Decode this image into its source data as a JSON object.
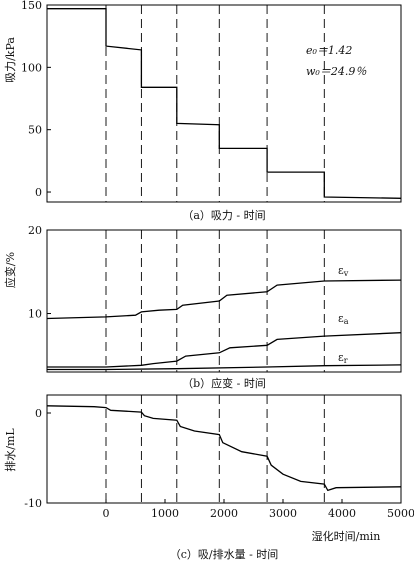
{
  "chart_data": [
    {
      "id": "a",
      "type": "line",
      "caption": "（a）吸力 - 时间",
      "ylabel": "吸力/kPa",
      "ylim": [
        -8,
        150
      ],
      "yticks": [
        0,
        50,
        100,
        150
      ],
      "xlim": [
        -1000,
        5000
      ],
      "annotations": [
        "e₀＝1.42",
        "w₀＝24.9％"
      ],
      "dashed_x": [
        0,
        600,
        1200,
        1920,
        2730,
        3700
      ],
      "series": [
        {
          "name": "",
          "points": [
            [
              -1000,
              147
            ],
            [
              -600,
              147
            ],
            [
              0,
              147
            ],
            [
              0,
              117
            ],
            [
              600,
              114
            ],
            [
              600,
              84
            ],
            [
              1200,
              84
            ],
            [
              1200,
              55
            ],
            [
              1920,
              54
            ],
            [
              1920,
              35
            ],
            [
              2730,
              35
            ],
            [
              2730,
              16
            ],
            [
              3700,
              16
            ],
            [
              3700,
              -4
            ],
            [
              5000,
              -5
            ]
          ]
        }
      ]
    },
    {
      "id": "b",
      "type": "line",
      "caption": "（b）应变 - 时间",
      "ylabel": "应变/%",
      "ylim": [
        3,
        20
      ],
      "yticks": [
        10,
        20
      ],
      "xlim": [
        -1000,
        5000
      ],
      "dashed_x": [
        0,
        600,
        1200,
        1920,
        2730,
        3700
      ],
      "series_labels": [
        "ε",
        "ε",
        "ε"
      ],
      "series_subs": [
        "v",
        "a",
        "r"
      ],
      "series": [
        {
          "name": "εv",
          "points": [
            [
              -1000,
              9.4
            ],
            [
              0,
              9.6
            ],
            [
              500,
              9.8
            ],
            [
              600,
              10.2
            ],
            [
              900,
              10.4
            ],
            [
              1200,
              10.5
            ],
            [
              1300,
              11.0
            ],
            [
              1920,
              11.5
            ],
            [
              2050,
              12.2
            ],
            [
              2730,
              12.6
            ],
            [
              2900,
              13.4
            ],
            [
              3700,
              13.9
            ],
            [
              5000,
              14.0
            ]
          ]
        },
        {
          "name": "εa",
          "points": [
            [
              -1000,
              3.6
            ],
            [
              0,
              3.6
            ],
            [
              600,
              3.8
            ],
            [
              800,
              4.0
            ],
            [
              1200,
              4.3
            ],
            [
              1350,
              4.9
            ],
            [
              1920,
              5.3
            ],
            [
              2100,
              5.9
            ],
            [
              2730,
              6.2
            ],
            [
              2900,
              6.9
            ],
            [
              3700,
              7.3
            ],
            [
              5000,
              7.7
            ]
          ]
        },
        {
          "name": "εr",
          "points": [
            [
              -1000,
              3.3
            ],
            [
              0,
              3.3
            ],
            [
              1200,
              3.4
            ],
            [
              2730,
              3.6
            ],
            [
              3700,
              3.75
            ],
            [
              5000,
              3.85
            ]
          ]
        }
      ]
    },
    {
      "id": "c",
      "type": "line",
      "caption": "（c）吸/排水量 - 时间",
      "ylabel": "排水/mL",
      "xlabel": "湿化时间/min",
      "ylim": [
        -10,
        2
      ],
      "yticks": [
        -10,
        0
      ],
      "xlim": [
        -1000,
        5000
      ],
      "xticks": [
        0,
        1000,
        2000,
        3000,
        4000,
        5000
      ],
      "dashed_x": [
        0,
        600,
        1200,
        1920,
        2730,
        3700
      ],
      "series": [
        {
          "name": "",
          "points": [
            [
              -1000,
              0.8
            ],
            [
              -200,
              0.7
            ],
            [
              0,
              0.6
            ],
            [
              80,
              0.3
            ],
            [
              600,
              0.1
            ],
            [
              650,
              -0.3
            ],
            [
              800,
              -0.6
            ],
            [
              1200,
              -0.8
            ],
            [
              1260,
              -1.5
            ],
            [
              1500,
              -2.0
            ],
            [
              1920,
              -2.4
            ],
            [
              1980,
              -3.3
            ],
            [
              2300,
              -4.3
            ],
            [
              2730,
              -4.8
            ],
            [
              2800,
              -5.8
            ],
            [
              3000,
              -6.8
            ],
            [
              3300,
              -7.6
            ],
            [
              3700,
              -7.9
            ],
            [
              3760,
              -8.6
            ],
            [
              3900,
              -8.3
            ],
            [
              5000,
              -8.2
            ]
          ]
        }
      ]
    }
  ]
}
